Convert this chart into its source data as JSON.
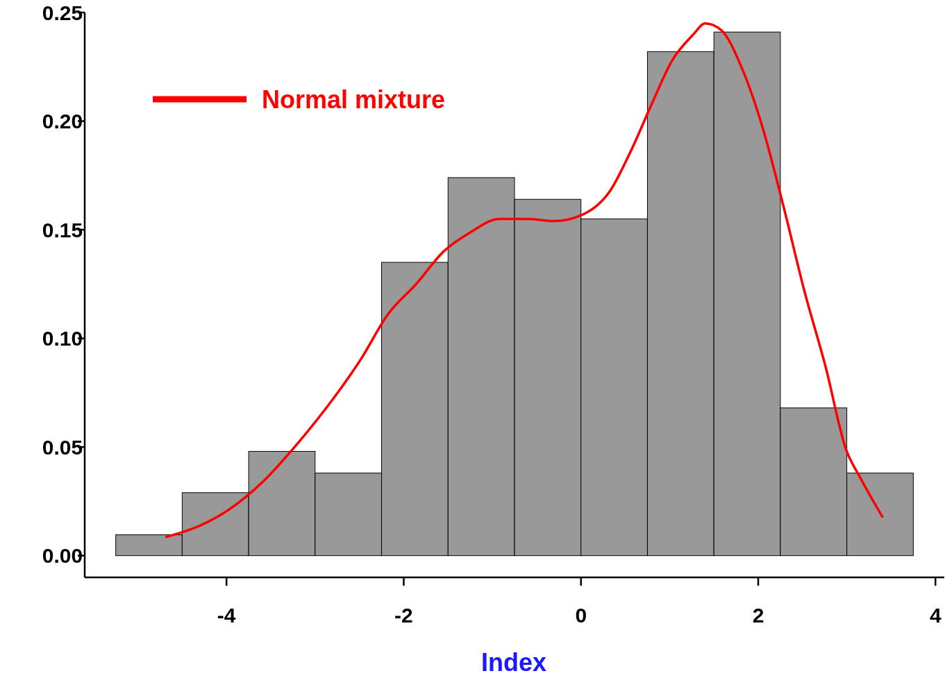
{
  "chart_data": {
    "type": "histogram",
    "xlabel": "Index",
    "bins": [
      -5.25,
      -4.5,
      -3.75,
      -3,
      -2.25,
      -1.5,
      -0.75,
      0,
      0.75,
      1.5,
      2.25,
      3,
      3.75
    ],
    "values": [
      0.0096,
      0.029,
      0.048,
      0.038,
      0.135,
      0.174,
      0.164,
      0.155,
      0.232,
      0.241,
      0.068,
      0.038
    ],
    "color": "#999999",
    "series": [
      {
        "type": "line",
        "name": "Normal mixture",
        "color": "#ff0000",
        "x": [
          -4.68,
          -4.29,
          -3.98,
          -3.59,
          -3.19,
          -2.8,
          -2.49,
          -2.18,
          -1.86,
          -1.55,
          -1.24,
          -0.92,
          -0.61,
          -0.3,
          0.02,
          0.33,
          0.56,
          0.8,
          1.03,
          1.27,
          1.4,
          1.58,
          1.82,
          2.05,
          2.29,
          2.52,
          2.76,
          2.99,
          3.15,
          3.4
        ],
        "values": [
          0.0086,
          0.014,
          0.021,
          0.034,
          0.052,
          0.072,
          0.09,
          0.111,
          0.125,
          0.14,
          0.149,
          0.155,
          0.155,
          0.154,
          0.157,
          0.168,
          0.186,
          0.208,
          0.228,
          0.24,
          0.245,
          0.242,
          0.224,
          0.197,
          0.16,
          0.122,
          0.087,
          0.049,
          0.036,
          0.018
        ]
      }
    ],
    "xlim": [
      -5.6,
      4.1
    ],
    "xticks": [
      -4,
      -2,
      0,
      2,
      4
    ],
    "ylim": [
      -0.01,
      0.25
    ],
    "yticks": [
      {
        "value": 0,
        "label": "0.00"
      },
      {
        "value": 0.05,
        "label": "0.05"
      },
      {
        "value": 0.1,
        "label": "0.10"
      },
      {
        "value": 0.15,
        "label": "0.15"
      },
      {
        "value": 0.2,
        "label": "0.20"
      },
      {
        "value": 0.25,
        "label": "0.25"
      }
    ],
    "legend": "top left",
    "grid": false
  }
}
